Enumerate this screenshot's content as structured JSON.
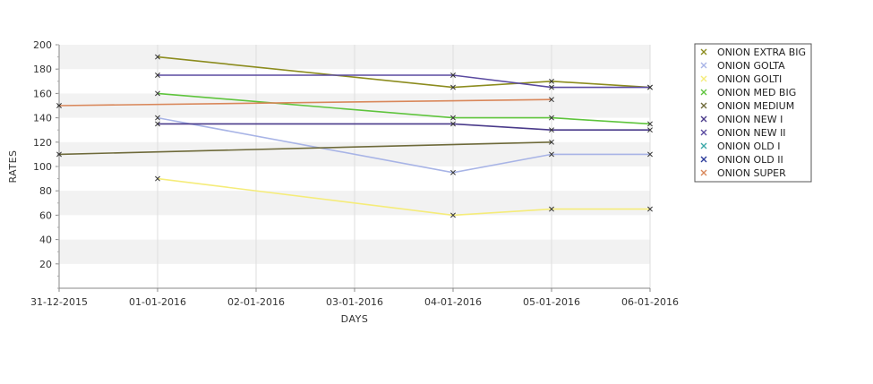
{
  "chart_data": {
    "type": "line",
    "xlabel": "DAYS",
    "ylabel": "RATES",
    "categories": [
      "31-12-2015",
      "01-01-2016",
      "02-01-2016",
      "03-01-2016",
      "04-01-2016",
      "05-01-2016",
      "06-01-2016"
    ],
    "ylim": [
      0,
      200
    ],
    "yticks": [
      20,
      40,
      60,
      80,
      100,
      120,
      140,
      160,
      180,
      200
    ],
    "grid": true,
    "legend_position": "right",
    "series": [
      {
        "name": "ONION EXTRA BIG",
        "color": "#8c8c1e",
        "x": [
          "01-01-2016",
          "04-01-2016",
          "05-01-2016",
          "06-01-2016"
        ],
        "values": [
          190,
          165,
          170,
          165
        ]
      },
      {
        "name": "ONION GOLTA",
        "color": "#a8b4e6",
        "x": [
          "01-01-2016",
          "04-01-2016",
          "05-01-2016",
          "06-01-2016"
        ],
        "values": [
          140,
          95,
          110,
          110
        ]
      },
      {
        "name": "ONION GOLTI",
        "color": "#f5ec7a",
        "x": [
          "01-01-2016",
          "04-01-2016",
          "05-01-2016",
          "06-01-2016"
        ],
        "values": [
          90,
          60,
          65,
          65
        ]
      },
      {
        "name": "ONION MED BIG",
        "color": "#5ec43c",
        "x": [
          "01-01-2016",
          "04-01-2016",
          "05-01-2016",
          "06-01-2016"
        ],
        "values": [
          160,
          140,
          140,
          135
        ]
      },
      {
        "name": "ONION MEDIUM",
        "color": "#6e6a3a",
        "x": [
          "31-12-2015",
          "05-01-2016"
        ],
        "values": [
          110,
          120
        ]
      },
      {
        "name": "ONION NEW I",
        "color": "#4a3a8a",
        "x": [
          "01-01-2016",
          "04-01-2016",
          "05-01-2016",
          "06-01-2016"
        ],
        "values": [
          135,
          135,
          130,
          130
        ]
      },
      {
        "name": "ONION NEW II",
        "color": "#5a4aa0",
        "x": [
          "01-01-2016",
          "04-01-2016",
          "05-01-2016",
          "06-01-2016"
        ],
        "values": [
          175,
          175,
          165,
          165
        ]
      },
      {
        "name": "ONION OLD I",
        "color": "#3aa8a8",
        "x": [],
        "values": []
      },
      {
        "name": "ONION OLD II",
        "color": "#2a3a9a",
        "x": [],
        "values": []
      },
      {
        "name": "ONION SUPER",
        "color": "#d9875a",
        "x": [
          "31-12-2015",
          "05-01-2016"
        ],
        "values": [
          150,
          155
        ]
      }
    ]
  }
}
